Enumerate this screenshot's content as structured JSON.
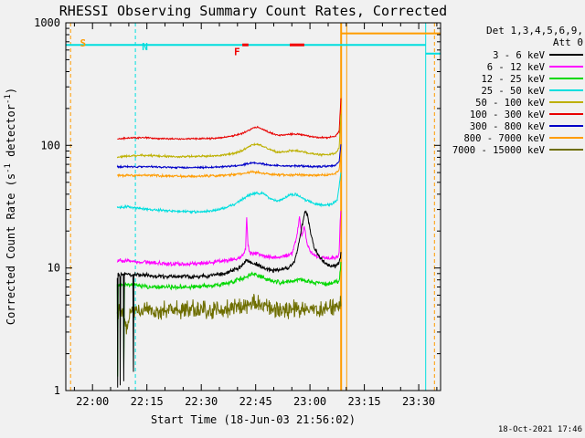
{
  "legend": {
    "det_line": "Det 1,3,4,5,6,9,",
    "att_line": "Att 0"
  },
  "footer": {
    "created": "18-Oct-2021 17:46"
  },
  "chart_data": {
    "type": "line",
    "title": "RHESSI Observing Summary Count Rates, Corrected",
    "xlabel": "Start Time (18-Jun-03 21:56:02)",
    "ylabel_parts": [
      "Corrected Count Rate (s",
      "-1",
      " detector",
      "-1",
      ")"
    ],
    "ylim": [
      1,
      1000
    ],
    "xlim_minutes": [
      -3.4,
      100
    ],
    "grid": false,
    "legend_position": "right",
    "x_ticks": [
      {
        "t": 3.97,
        "label": "22:00"
      },
      {
        "t": 18.97,
        "label": "22:15"
      },
      {
        "t": 33.97,
        "label": "22:30"
      },
      {
        "t": 48.97,
        "label": "22:45"
      },
      {
        "t": 63.97,
        "label": "23:00"
      },
      {
        "t": 78.97,
        "label": "23:15"
      },
      {
        "t": 93.97,
        "label": "23:30"
      }
    ],
    "y_ticks": [
      {
        "v": 1,
        "label": "1"
      },
      {
        "v": 10,
        "label": "10"
      },
      {
        "v": 100,
        "label": "100"
      },
      {
        "v": 1000,
        "label": "1000"
      }
    ],
    "series": [
      {
        "label": "3 - 6 keV",
        "color": "#000000",
        "noise": 0.02,
        "points": [
          [
            10.8,
            8.5
          ],
          [
            10.9,
            1.05
          ],
          [
            11.0,
            8.8
          ],
          [
            11.5,
            8.8
          ],
          [
            11.6,
            1.1
          ],
          [
            11.75,
            9
          ],
          [
            12.5,
            8.8
          ],
          [
            12.6,
            1.2
          ],
          [
            12.75,
            9
          ],
          [
            15.1,
            8.8
          ],
          [
            15.25,
            1.4
          ],
          [
            15.4,
            9
          ],
          [
            17,
            8.8
          ],
          [
            20,
            8.6
          ],
          [
            24,
            8.5
          ],
          [
            28,
            8.5
          ],
          [
            32,
            8.5
          ],
          [
            36,
            8.6
          ],
          [
            40,
            9.0
          ],
          [
            43,
            9.6
          ],
          [
            45,
            10.3
          ],
          [
            46.5,
            11.5
          ],
          [
            48,
            11
          ],
          [
            50,
            10.5
          ],
          [
            52,
            9.8
          ],
          [
            54,
            9.5
          ],
          [
            56,
            9.6
          ],
          [
            58,
            10
          ],
          [
            59.5,
            11
          ],
          [
            60.5,
            14
          ],
          [
            61.5,
            20
          ],
          [
            62.6,
            29
          ],
          [
            63.3,
            27
          ],
          [
            64,
            20
          ],
          [
            65,
            15
          ],
          [
            66,
            13
          ],
          [
            67.5,
            11.5
          ],
          [
            69,
            10.5
          ],
          [
            71,
            10.3
          ],
          [
            72,
            11
          ],
          [
            72.5,
            13
          ]
        ]
      },
      {
        "label": "6 - 12 keV",
        "color": "#ff00ff",
        "noise": 0.02,
        "points": [
          [
            10.8,
            11.5
          ],
          [
            13,
            11.4
          ],
          [
            16,
            11.2
          ],
          [
            20,
            11.0
          ],
          [
            24,
            10.8
          ],
          [
            28,
            10.8
          ],
          [
            32,
            10.8
          ],
          [
            36,
            11.0
          ],
          [
            40,
            11.4
          ],
          [
            43,
            11.8
          ],
          [
            45,
            12.2
          ],
          [
            46.2,
            14
          ],
          [
            46.5,
            26
          ],
          [
            46.9,
            15
          ],
          [
            47.5,
            13
          ],
          [
            49,
            13.2
          ],
          [
            51,
            12.6
          ],
          [
            53,
            12.2
          ],
          [
            55,
            12.2
          ],
          [
            57,
            12.5
          ],
          [
            59,
            13
          ],
          [
            60.3,
            18
          ],
          [
            61.1,
            26
          ],
          [
            61.7,
            18
          ],
          [
            62.4,
            22
          ],
          [
            63.1,
            16
          ],
          [
            64,
            13.5
          ],
          [
            65.5,
            12.5
          ],
          [
            67,
            12.2
          ],
          [
            69,
            12
          ],
          [
            71,
            12.2
          ],
          [
            72,
            13
          ],
          [
            72.3,
            24
          ],
          [
            72.5,
            29
          ]
        ]
      },
      {
        "label": "12 - 25 keV",
        "color": "#00d800",
        "noise": 0.022,
        "points": [
          [
            10.8,
            7.3
          ],
          [
            10.9,
            1.3
          ],
          [
            11.05,
            7.4
          ],
          [
            12.5,
            7.3
          ],
          [
            12.62,
            1.5
          ],
          [
            12.78,
            7.4
          ],
          [
            16,
            7.2
          ],
          [
            20,
            7.0
          ],
          [
            25,
            7.0
          ],
          [
            30,
            7.0
          ],
          [
            35,
            7.1
          ],
          [
            39,
            7.3
          ],
          [
            42,
            7.6
          ],
          [
            45,
            8.2
          ],
          [
            47,
            8.7
          ],
          [
            49,
            8.9
          ],
          [
            51,
            8.4
          ],
          [
            53,
            7.9
          ],
          [
            56,
            7.6
          ],
          [
            59,
            7.8
          ],
          [
            61,
            8.1
          ],
          [
            63,
            7.9
          ],
          [
            65,
            7.6
          ],
          [
            68,
            7.4
          ],
          [
            70,
            7.5
          ],
          [
            72,
            7.8
          ],
          [
            72.5,
            11
          ]
        ]
      },
      {
        "label": "25 - 50 keV",
        "color": "#00dede",
        "noise": 0.012,
        "points": [
          [
            10.8,
            31
          ],
          [
            13,
            31.5
          ],
          [
            16,
            31
          ],
          [
            20,
            30
          ],
          [
            24,
            29.5
          ],
          [
            28,
            29
          ],
          [
            32,
            28.6
          ],
          [
            36,
            29
          ],
          [
            40,
            30.5
          ],
          [
            43,
            33
          ],
          [
            45,
            36
          ],
          [
            47,
            39
          ],
          [
            49,
            41
          ],
          [
            51,
            40.5
          ],
          [
            53,
            37
          ],
          [
            55,
            35
          ],
          [
            57,
            37.5
          ],
          [
            58.5,
            39.5
          ],
          [
            60,
            40
          ],
          [
            62,
            37
          ],
          [
            64,
            34.5
          ],
          [
            66,
            33
          ],
          [
            68,
            32.5
          ],
          [
            70,
            33
          ],
          [
            71.5,
            36
          ],
          [
            72.5,
            60
          ]
        ]
      },
      {
        "label": "50 - 100 keV",
        "color": "#bdb000",
        "noise": 0.01,
        "points": [
          [
            10.8,
            80
          ],
          [
            14,
            82
          ],
          [
            18,
            83
          ],
          [
            22,
            82
          ],
          [
            26,
            81
          ],
          [
            30,
            81
          ],
          [
            34,
            81.5
          ],
          [
            38,
            82
          ],
          [
            41,
            84
          ],
          [
            44,
            88
          ],
          [
            46,
            93
          ],
          [
            48,
            101
          ],
          [
            49.5,
            103
          ],
          [
            51,
            98
          ],
          [
            53,
            92
          ],
          [
            55,
            88
          ],
          [
            57,
            89
          ],
          [
            59,
            91
          ],
          [
            61,
            90
          ],
          [
            63,
            87
          ],
          [
            65,
            85
          ],
          [
            67,
            84
          ],
          [
            69,
            84
          ],
          [
            71,
            86
          ],
          [
            72,
            95
          ],
          [
            72.5,
            180
          ]
        ]
      },
      {
        "label": "100 - 300 keV",
        "color": "#e80000",
        "noise": 0.008,
        "points": [
          [
            10.8,
            112
          ],
          [
            14,
            115
          ],
          [
            18,
            116
          ],
          [
            22,
            114
          ],
          [
            26,
            113
          ],
          [
            30,
            113
          ],
          [
            34,
            113.5
          ],
          [
            38,
            114
          ],
          [
            41,
            117
          ],
          [
            44,
            122
          ],
          [
            46,
            128
          ],
          [
            48,
            138
          ],
          [
            49.5,
            141
          ],
          [
            51,
            135
          ],
          [
            53,
            127
          ],
          [
            55,
            121
          ],
          [
            57,
            122
          ],
          [
            59,
            124
          ],
          [
            61,
            123
          ],
          [
            63,
            120
          ],
          [
            65,
            117
          ],
          [
            67,
            116
          ],
          [
            69,
            116
          ],
          [
            71,
            119
          ],
          [
            72,
            130
          ],
          [
            72.5,
            240
          ]
        ]
      },
      {
        "label": "300 - 800 keV",
        "color": "#0000c8",
        "noise": 0.009,
        "points": [
          [
            10.8,
            67
          ],
          [
            15,
            67
          ],
          [
            20,
            67
          ],
          [
            26,
            66
          ],
          [
            32,
            66
          ],
          [
            38,
            66.5
          ],
          [
            43,
            68
          ],
          [
            46,
            70
          ],
          [
            48,
            72
          ],
          [
            50,
            71
          ],
          [
            53,
            69
          ],
          [
            57,
            68
          ],
          [
            61,
            68
          ],
          [
            65,
            67
          ],
          [
            69,
            67.5
          ],
          [
            71,
            69
          ],
          [
            72,
            74
          ],
          [
            72.5,
            102
          ]
        ]
      },
      {
        "label": "800 - 7000 keV",
        "color": "#ff9c00",
        "noise": 0.011,
        "points": [
          [
            10.8,
            57
          ],
          [
            15,
            57
          ],
          [
            20,
            57
          ],
          [
            26,
            56
          ],
          [
            32,
            56
          ],
          [
            38,
            56.5
          ],
          [
            43,
            58
          ],
          [
            46,
            59
          ],
          [
            48,
            61
          ],
          [
            50,
            60
          ],
          [
            53,
            58
          ],
          [
            57,
            57.5
          ],
          [
            61,
            57.5
          ],
          [
            65,
            57
          ],
          [
            69,
            57.5
          ],
          [
            71,
            59
          ],
          [
            72,
            63
          ],
          [
            72.5,
            88
          ]
        ]
      },
      {
        "label": "7000 - 15000 keV",
        "color": "#6e6e00",
        "noise": 0.09,
        "points": [
          [
            10.8,
            4.3
          ],
          [
            12,
            4.6
          ],
          [
            13.5,
            3.3
          ],
          [
            15,
            4.6
          ],
          [
            17,
            4.4
          ],
          [
            19,
            4.7
          ],
          [
            22,
            4.4
          ],
          [
            25,
            4.6
          ],
          [
            28,
            4.4
          ],
          [
            31,
            4.6
          ],
          [
            34,
            4.5
          ],
          [
            37,
            4.6
          ],
          [
            40,
            4.5
          ],
          [
            43,
            4.7
          ],
          [
            46,
            5.0
          ],
          [
            49,
            5.1
          ],
          [
            52,
            4.8
          ],
          [
            55,
            4.6
          ],
          [
            58,
            4.6
          ],
          [
            61,
            4.6
          ],
          [
            64,
            4.5
          ],
          [
            67,
            4.6
          ],
          [
            70,
            4.7
          ],
          [
            72,
            4.9
          ],
          [
            72.5,
            5.5
          ]
        ]
      }
    ],
    "flags": {
      "colors": {
        "saa": "#ff9c00",
        "night": "#00dede",
        "flare": "#f00000"
      },
      "vlines": [
        {
          "t": -2.1,
          "color": "#ff9c00",
          "dash": "4,3",
          "w": 1
        },
        {
          "t": 15.8,
          "color": "#00dede",
          "dash": "4,3",
          "w": 1
        },
        {
          "t": 72.55,
          "color": "#ff9c00",
          "dash": "",
          "w": 2
        },
        {
          "t": 74.1,
          "color": "#ff9c00",
          "dash": "",
          "w": 1
        },
        {
          "t": 95.9,
          "color": "#00dede",
          "dash": "",
          "w": 1
        },
        {
          "t": 98.3,
          "color": "#ff9c00",
          "dash": "4,3",
          "w": 1
        }
      ],
      "hlines": [
        {
          "t1": -3.4,
          "t2": 95.9,
          "v": 660,
          "color": "#00dede",
          "w": 2
        },
        {
          "t1": 95.9,
          "t2": 100,
          "v": 560,
          "color": "#00dede",
          "w": 2
        },
        {
          "t1": 72.55,
          "t2": 100,
          "v": 820,
          "color": "#ff9c00",
          "w": 2
        },
        {
          "t1": 45.3,
          "t2": 47.0,
          "v": 660,
          "color": "#f00000",
          "w": 3
        },
        {
          "t1": 58.4,
          "t2": 62.4,
          "v": 660,
          "color": "#f00000",
          "w": 3
        }
      ],
      "texts": [
        {
          "t": 0.5,
          "v": 640,
          "label": "S",
          "color": "#ff9c00"
        },
        {
          "t": 17.6,
          "v": 600,
          "label": "N",
          "color": "#00dede"
        },
        {
          "t": 43.0,
          "v": 545,
          "label": "F",
          "color": "#f00000"
        }
      ]
    }
  }
}
